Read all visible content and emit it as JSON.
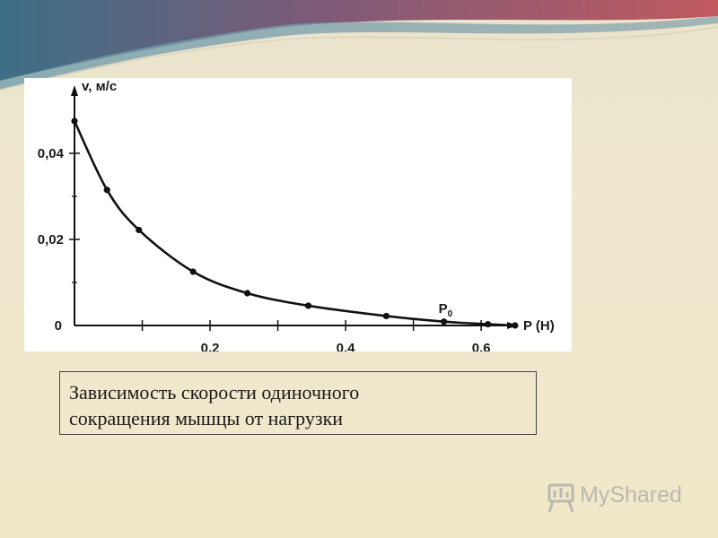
{
  "chart_data": {
    "type": "line",
    "ylabel": "v, м/с",
    "xlabel": "P (Н)",
    "x_ticks": [
      "0,2",
      "0,4",
      "0,6"
    ],
    "x_tick_values": [
      0.2,
      0.4,
      0.6
    ],
    "y_ticks": [
      "0",
      "0,02",
      "0,04"
    ],
    "y_tick_values": [
      0,
      0.02,
      0.04
    ],
    "xlim": [
      0,
      0.67
    ],
    "ylim": [
      0,
      0.05
    ],
    "series": [
      {
        "x": [
          0.0,
          0.048,
          0.095,
          0.175,
          0.255,
          0.345,
          0.46,
          0.545,
          0.61,
          0.65
        ],
        "y": [
          0.0475,
          0.0315,
          0.0222,
          0.0125,
          0.0075,
          0.0046,
          0.0022,
          0.0009,
          0.0003,
          0.0
        ]
      }
    ],
    "annotations": [
      {
        "label": "P",
        "subscript": "0",
        "x": 0.545
      }
    ],
    "grid": false,
    "curve_color": "#111111"
  },
  "caption": {
    "line1": "Зависимость скорости одиночного",
    "line2": "сокращения мышцы от нагрузки"
  },
  "brand": {
    "text": "MyShared"
  }
}
